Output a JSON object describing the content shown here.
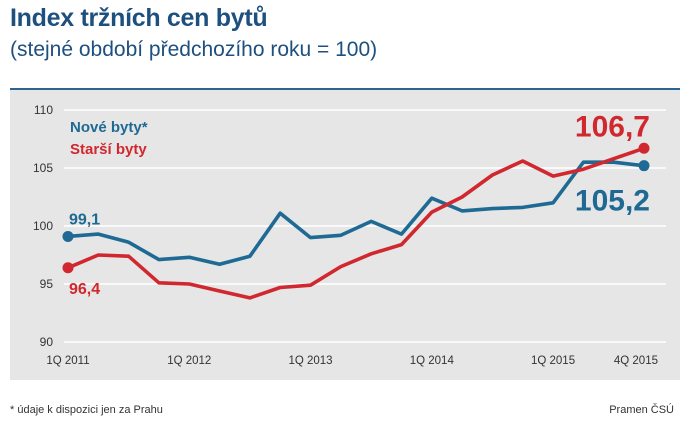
{
  "header": {
    "title": "Index tržních cen bytů",
    "subtitle": "(stejné období předchozího roku = 100)"
  },
  "footer": {
    "footnote": "* údaje k dispozici jen za Prahu",
    "source": "Pramen ČSÚ"
  },
  "chart_data": {
    "type": "line",
    "title": "Index tržních cen bytů",
    "subtitle": "(stejné období předchozího roku = 100)",
    "xlabel": "",
    "ylabel": "",
    "ylim": [
      90,
      110
    ],
    "yticks": [
      "90",
      "95",
      "100",
      "105",
      "110"
    ],
    "x": [
      "1Q 2011",
      "2Q 2011",
      "3Q 2011",
      "4Q 2011",
      "1Q 2012",
      "2Q 2012",
      "3Q 2012",
      "4Q 2012",
      "1Q 2013",
      "2Q 2013",
      "3Q 2013",
      "4Q 2013",
      "1Q 2014",
      "2Q 2014",
      "3Q 2014",
      "4Q 2014",
      "1Q 2015",
      "2Q 2015",
      "3Q 2015",
      "4Q 2015"
    ],
    "xticks": [
      {
        "index": 0,
        "label": "1Q 2011"
      },
      {
        "index": 4,
        "label": "1Q 2012"
      },
      {
        "index": 8,
        "label": "1Q 2013"
      },
      {
        "index": 12,
        "label": "1Q 2014"
      },
      {
        "index": 16,
        "label": "1Q 2015"
      },
      {
        "index": 19,
        "label": "4Q 2015"
      }
    ],
    "grid": true,
    "legend_position": "top-left",
    "series": [
      {
        "name": "Nové byty*",
        "color": "#1f6a94",
        "values": [
          99.1,
          99.3,
          98.6,
          97.1,
          97.3,
          96.7,
          97.4,
          101.1,
          99.0,
          99.2,
          100.4,
          99.3,
          102.4,
          101.3,
          101.5,
          101.6,
          102.0,
          105.5,
          105.5,
          105.2
        ],
        "start_label": "99,1",
        "end_label": "105,2"
      },
      {
        "name": "Starší byty",
        "color": "#d0282e",
        "values": [
          96.4,
          97.5,
          97.4,
          95.1,
          95.0,
          94.4,
          93.8,
          94.7,
          94.9,
          96.5,
          97.6,
          98.4,
          101.2,
          102.5,
          104.4,
          105.6,
          104.3,
          104.9,
          105.8,
          106.7
        ],
        "start_label": "96,4",
        "end_label": "106,7"
      }
    ]
  }
}
